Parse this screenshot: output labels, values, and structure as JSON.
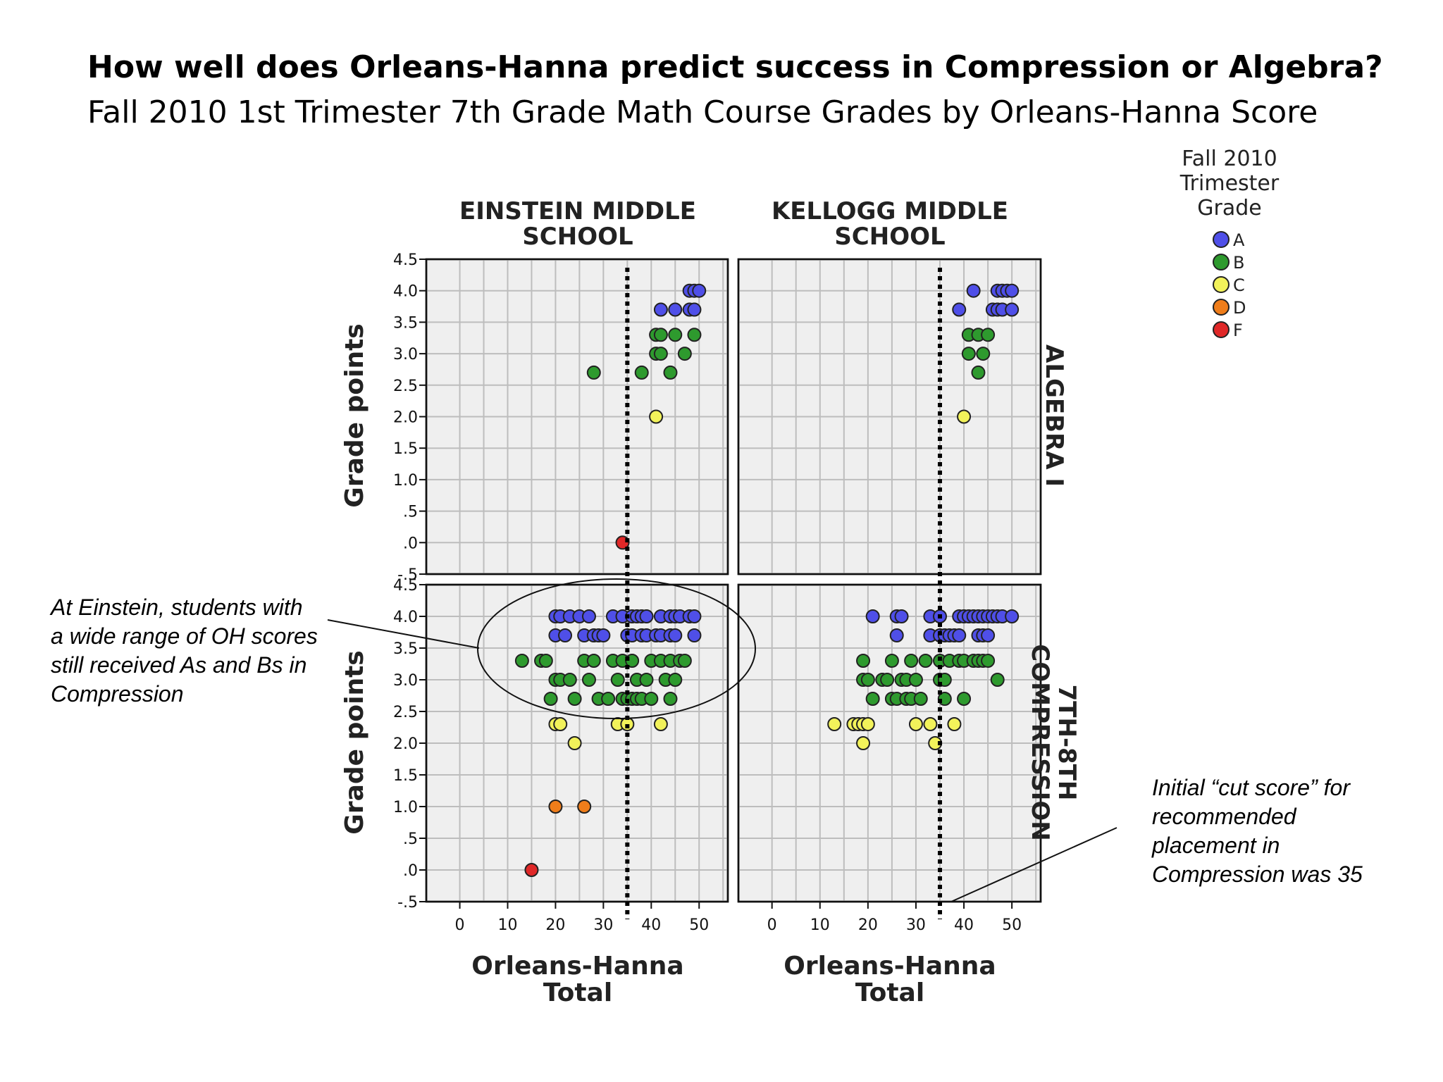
{
  "title": "How well does Orleans-Hanna predict success in Compression or Algebra?",
  "subtitle": "Fall 2010 1st Trimester 7th Grade Math Course Grades by Orleans-Hanna Score",
  "annotations": {
    "left": "At Einstein, students with a wide range of OH scores still received As and Bs in Compression",
    "right": "Initial “cut score” for recommended placement in Compression was 35"
  },
  "chart_data": {
    "type": "scatter",
    "xlabel": "Orleans-Hanna Total",
    "ylabel": "Grade points",
    "x_ticks": [
      "0",
      "10",
      "20",
      "30",
      "40",
      "50"
    ],
    "y_ticks": [
      "4.5",
      "4.0",
      "3.5",
      "3.0",
      "2.5",
      "2.0",
      "1.5",
      "1.0",
      ".5",
      ".0",
      "-.5"
    ],
    "xlim": [
      -7,
      56
    ],
    "ylim": [
      -0.5,
      4.5
    ],
    "cut_score": 35,
    "columns": [
      "EINSTEIN MIDDLE SCHOOL",
      "KELLOGG MIDDLE SCHOOL"
    ],
    "rows": [
      "ALGEBRA I",
      "7TH-8TH COMPRESSION"
    ],
    "legend": {
      "title": "Fall 2010 Trimester Grade",
      "placement": "top-right",
      "items": [
        {
          "grade": "A",
          "color": "#4f4fe8"
        },
        {
          "grade": "B",
          "color": "#2e9a2e"
        },
        {
          "grade": "C",
          "color": "#f2f25a"
        },
        {
          "grade": "D",
          "color": "#ef7d1a"
        },
        {
          "grade": "F",
          "color": "#e02828"
        }
      ]
    },
    "panels": [
      {
        "school": "EINSTEIN MIDDLE SCHOOL",
        "course": "ALGEBRA I",
        "points": [
          {
            "x": 48,
            "y": 4.0,
            "g": "A"
          },
          {
            "x": 49,
            "y": 4.0,
            "g": "A"
          },
          {
            "x": 50,
            "y": 4.0,
            "g": "A"
          },
          {
            "x": 42,
            "y": 3.7,
            "g": "A"
          },
          {
            "x": 45,
            "y": 3.7,
            "g": "A"
          },
          {
            "x": 48,
            "y": 3.7,
            "g": "A"
          },
          {
            "x": 49,
            "y": 3.7,
            "g": "A"
          },
          {
            "x": 41,
            "y": 3.3,
            "g": "B"
          },
          {
            "x": 42,
            "y": 3.3,
            "g": "B"
          },
          {
            "x": 45,
            "y": 3.3,
            "g": "B"
          },
          {
            "x": 49,
            "y": 3.3,
            "g": "B"
          },
          {
            "x": 41,
            "y": 3.0,
            "g": "B"
          },
          {
            "x": 42,
            "y": 3.0,
            "g": "B"
          },
          {
            "x": 47,
            "y": 3.0,
            "g": "B"
          },
          {
            "x": 28,
            "y": 2.7,
            "g": "B"
          },
          {
            "x": 38,
            "y": 2.7,
            "g": "B"
          },
          {
            "x": 44,
            "y": 2.7,
            "g": "B"
          },
          {
            "x": 41,
            "y": 2.0,
            "g": "C"
          },
          {
            "x": 34,
            "y": 0.0,
            "g": "F"
          }
        ]
      },
      {
        "school": "KELLOGG MIDDLE SCHOOL",
        "course": "ALGEBRA I",
        "points": [
          {
            "x": 42,
            "y": 4.0,
            "g": "A"
          },
          {
            "x": 47,
            "y": 4.0,
            "g": "A"
          },
          {
            "x": 48,
            "y": 4.0,
            "g": "A"
          },
          {
            "x": 49,
            "y": 4.0,
            "g": "A"
          },
          {
            "x": 50,
            "y": 4.0,
            "g": "A"
          },
          {
            "x": 39,
            "y": 3.7,
            "g": "A"
          },
          {
            "x": 46,
            "y": 3.7,
            "g": "A"
          },
          {
            "x": 47,
            "y": 3.7,
            "g": "A"
          },
          {
            "x": 48,
            "y": 3.7,
            "g": "A"
          },
          {
            "x": 50,
            "y": 3.7,
            "g": "A"
          },
          {
            "x": 41,
            "y": 3.3,
            "g": "B"
          },
          {
            "x": 43,
            "y": 3.3,
            "g": "B"
          },
          {
            "x": 45,
            "y": 3.3,
            "g": "B"
          },
          {
            "x": 41,
            "y": 3.0,
            "g": "B"
          },
          {
            "x": 44,
            "y": 3.0,
            "g": "B"
          },
          {
            "x": 43,
            "y": 2.7,
            "g": "B"
          },
          {
            "x": 40,
            "y": 2.0,
            "g": "C"
          }
        ]
      },
      {
        "school": "EINSTEIN MIDDLE SCHOOL",
        "course": "7TH-8TH COMPRESSION",
        "points": [
          {
            "x": 20,
            "y": 4.0,
            "g": "A"
          },
          {
            "x": 21,
            "y": 4.0,
            "g": "A"
          },
          {
            "x": 23,
            "y": 4.0,
            "g": "A"
          },
          {
            "x": 25,
            "y": 4.0,
            "g": "A"
          },
          {
            "x": 27,
            "y": 4.0,
            "g": "A"
          },
          {
            "x": 32,
            "y": 4.0,
            "g": "A"
          },
          {
            "x": 34,
            "y": 4.0,
            "g": "A"
          },
          {
            "x": 36,
            "y": 4.0,
            "g": "A"
          },
          {
            "x": 37,
            "y": 4.0,
            "g": "A"
          },
          {
            "x": 38,
            "y": 4.0,
            "g": "A"
          },
          {
            "x": 39,
            "y": 4.0,
            "g": "A"
          },
          {
            "x": 42,
            "y": 4.0,
            "g": "A"
          },
          {
            "x": 44,
            "y": 4.0,
            "g": "A"
          },
          {
            "x": 45,
            "y": 4.0,
            "g": "A"
          },
          {
            "x": 46,
            "y": 4.0,
            "g": "A"
          },
          {
            "x": 48,
            "y": 4.0,
            "g": "A"
          },
          {
            "x": 49,
            "y": 4.0,
            "g": "A"
          },
          {
            "x": 20,
            "y": 3.7,
            "g": "A"
          },
          {
            "x": 22,
            "y": 3.7,
            "g": "A"
          },
          {
            "x": 26,
            "y": 3.7,
            "g": "A"
          },
          {
            "x": 28,
            "y": 3.7,
            "g": "A"
          },
          {
            "x": 29,
            "y": 3.7,
            "g": "A"
          },
          {
            "x": 30,
            "y": 3.7,
            "g": "A"
          },
          {
            "x": 35,
            "y": 3.7,
            "g": "A"
          },
          {
            "x": 36,
            "y": 3.7,
            "g": "A"
          },
          {
            "x": 38,
            "y": 3.7,
            "g": "A"
          },
          {
            "x": 39,
            "y": 3.7,
            "g": "A"
          },
          {
            "x": 41,
            "y": 3.7,
            "g": "A"
          },
          {
            "x": 42,
            "y": 3.7,
            "g": "A"
          },
          {
            "x": 44,
            "y": 3.7,
            "g": "A"
          },
          {
            "x": 45,
            "y": 3.7,
            "g": "A"
          },
          {
            "x": 49,
            "y": 3.7,
            "g": "A"
          },
          {
            "x": 13,
            "y": 3.3,
            "g": "B"
          },
          {
            "x": 17,
            "y": 3.3,
            "g": "B"
          },
          {
            "x": 18,
            "y": 3.3,
            "g": "B"
          },
          {
            "x": 26,
            "y": 3.3,
            "g": "B"
          },
          {
            "x": 28,
            "y": 3.3,
            "g": "B"
          },
          {
            "x": 32,
            "y": 3.3,
            "g": "B"
          },
          {
            "x": 34,
            "y": 3.3,
            "g": "B"
          },
          {
            "x": 36,
            "y": 3.3,
            "g": "B"
          },
          {
            "x": 40,
            "y": 3.3,
            "g": "B"
          },
          {
            "x": 42,
            "y": 3.3,
            "g": "B"
          },
          {
            "x": 44,
            "y": 3.3,
            "g": "B"
          },
          {
            "x": 46,
            "y": 3.3,
            "g": "B"
          },
          {
            "x": 47,
            "y": 3.3,
            "g": "B"
          },
          {
            "x": 20,
            "y": 3.0,
            "g": "B"
          },
          {
            "x": 21,
            "y": 3.0,
            "g": "B"
          },
          {
            "x": 23,
            "y": 3.0,
            "g": "B"
          },
          {
            "x": 27,
            "y": 3.0,
            "g": "B"
          },
          {
            "x": 33,
            "y": 3.0,
            "g": "B"
          },
          {
            "x": 37,
            "y": 3.0,
            "g": "B"
          },
          {
            "x": 39,
            "y": 3.0,
            "g": "B"
          },
          {
            "x": 43,
            "y": 3.0,
            "g": "B"
          },
          {
            "x": 45,
            "y": 3.0,
            "g": "B"
          },
          {
            "x": 19,
            "y": 2.7,
            "g": "B"
          },
          {
            "x": 24,
            "y": 2.7,
            "g": "B"
          },
          {
            "x": 29,
            "y": 2.7,
            "g": "B"
          },
          {
            "x": 31,
            "y": 2.7,
            "g": "B"
          },
          {
            "x": 34,
            "y": 2.7,
            "g": "B"
          },
          {
            "x": 35,
            "y": 2.7,
            "g": "B"
          },
          {
            "x": 36,
            "y": 2.7,
            "g": "B"
          },
          {
            "x": 37,
            "y": 2.7,
            "g": "B"
          },
          {
            "x": 38,
            "y": 2.7,
            "g": "B"
          },
          {
            "x": 40,
            "y": 2.7,
            "g": "B"
          },
          {
            "x": 44,
            "y": 2.7,
            "g": "B"
          },
          {
            "x": 20,
            "y": 2.3,
            "g": "C"
          },
          {
            "x": 21,
            "y": 2.3,
            "g": "C"
          },
          {
            "x": 33,
            "y": 2.3,
            "g": "C"
          },
          {
            "x": 35,
            "y": 2.3,
            "g": "C"
          },
          {
            "x": 42,
            "y": 2.3,
            "g": "C"
          },
          {
            "x": 24,
            "y": 2.0,
            "g": "C"
          },
          {
            "x": 20,
            "y": 1.0,
            "g": "D"
          },
          {
            "x": 26,
            "y": 1.0,
            "g": "D"
          },
          {
            "x": 15,
            "y": 0.0,
            "g": "F"
          }
        ]
      },
      {
        "school": "KELLOGG MIDDLE SCHOOL",
        "course": "7TH-8TH COMPRESSION",
        "points": [
          {
            "x": 21,
            "y": 4.0,
            "g": "A"
          },
          {
            "x": 26,
            "y": 4.0,
            "g": "A"
          },
          {
            "x": 27,
            "y": 4.0,
            "g": "A"
          },
          {
            "x": 33,
            "y": 4.0,
            "g": "A"
          },
          {
            "x": 35,
            "y": 4.0,
            "g": "A"
          },
          {
            "x": 39,
            "y": 4.0,
            "g": "A"
          },
          {
            "x": 40,
            "y": 4.0,
            "g": "A"
          },
          {
            "x": 41,
            "y": 4.0,
            "g": "A"
          },
          {
            "x": 42,
            "y": 4.0,
            "g": "A"
          },
          {
            "x": 43,
            "y": 4.0,
            "g": "A"
          },
          {
            "x": 44,
            "y": 4.0,
            "g": "A"
          },
          {
            "x": 45,
            "y": 4.0,
            "g": "A"
          },
          {
            "x": 46,
            "y": 4.0,
            "g": "A"
          },
          {
            "x": 47,
            "y": 4.0,
            "g": "A"
          },
          {
            "x": 48,
            "y": 4.0,
            "g": "A"
          },
          {
            "x": 50,
            "y": 4.0,
            "g": "A"
          },
          {
            "x": 26,
            "y": 3.7,
            "g": "A"
          },
          {
            "x": 33,
            "y": 3.7,
            "g": "A"
          },
          {
            "x": 35,
            "y": 3.7,
            "g": "A"
          },
          {
            "x": 36,
            "y": 3.7,
            "g": "A"
          },
          {
            "x": 37,
            "y": 3.7,
            "g": "A"
          },
          {
            "x": 38,
            "y": 3.7,
            "g": "A"
          },
          {
            "x": 39,
            "y": 3.7,
            "g": "A"
          },
          {
            "x": 43,
            "y": 3.7,
            "g": "A"
          },
          {
            "x": 44,
            "y": 3.7,
            "g": "A"
          },
          {
            "x": 45,
            "y": 3.7,
            "g": "A"
          },
          {
            "x": 19,
            "y": 3.3,
            "g": "B"
          },
          {
            "x": 25,
            "y": 3.3,
            "g": "B"
          },
          {
            "x": 29,
            "y": 3.3,
            "g": "B"
          },
          {
            "x": 32,
            "y": 3.3,
            "g": "B"
          },
          {
            "x": 35,
            "y": 3.3,
            "g": "B"
          },
          {
            "x": 37,
            "y": 3.3,
            "g": "B"
          },
          {
            "x": 39,
            "y": 3.3,
            "g": "B"
          },
          {
            "x": 40,
            "y": 3.3,
            "g": "B"
          },
          {
            "x": 42,
            "y": 3.3,
            "g": "B"
          },
          {
            "x": 43,
            "y": 3.3,
            "g": "B"
          },
          {
            "x": 44,
            "y": 3.3,
            "g": "B"
          },
          {
            "x": 45,
            "y": 3.3,
            "g": "B"
          },
          {
            "x": 19,
            "y": 3.0,
            "g": "B"
          },
          {
            "x": 20,
            "y": 3.0,
            "g": "B"
          },
          {
            "x": 23,
            "y": 3.0,
            "g": "B"
          },
          {
            "x": 24,
            "y": 3.0,
            "g": "B"
          },
          {
            "x": 27,
            "y": 3.0,
            "g": "B"
          },
          {
            "x": 28,
            "y": 3.0,
            "g": "B"
          },
          {
            "x": 30,
            "y": 3.0,
            "g": "B"
          },
          {
            "x": 35,
            "y": 3.0,
            "g": "B"
          },
          {
            "x": 36,
            "y": 3.0,
            "g": "B"
          },
          {
            "x": 47,
            "y": 3.0,
            "g": "B"
          },
          {
            "x": 21,
            "y": 2.7,
            "g": "B"
          },
          {
            "x": 25,
            "y": 2.7,
            "g": "B"
          },
          {
            "x": 26,
            "y": 2.7,
            "g": "B"
          },
          {
            "x": 28,
            "y": 2.7,
            "g": "B"
          },
          {
            "x": 29,
            "y": 2.7,
            "g": "B"
          },
          {
            "x": 31,
            "y": 2.7,
            "g": "B"
          },
          {
            "x": 36,
            "y": 2.7,
            "g": "B"
          },
          {
            "x": 40,
            "y": 2.7,
            "g": "B"
          },
          {
            "x": 13,
            "y": 2.3,
            "g": "C"
          },
          {
            "x": 17,
            "y": 2.3,
            "g": "C"
          },
          {
            "x": 18,
            "y": 2.3,
            "g": "C"
          },
          {
            "x": 19,
            "y": 2.3,
            "g": "C"
          },
          {
            "x": 20,
            "y": 2.3,
            "g": "C"
          },
          {
            "x": 30,
            "y": 2.3,
            "g": "C"
          },
          {
            "x": 33,
            "y": 2.3,
            "g": "C"
          },
          {
            "x": 38,
            "y": 2.3,
            "g": "C"
          },
          {
            "x": 19,
            "y": 2.0,
            "g": "C"
          },
          {
            "x": 34,
            "y": 2.0,
            "g": "C"
          }
        ]
      }
    ]
  }
}
